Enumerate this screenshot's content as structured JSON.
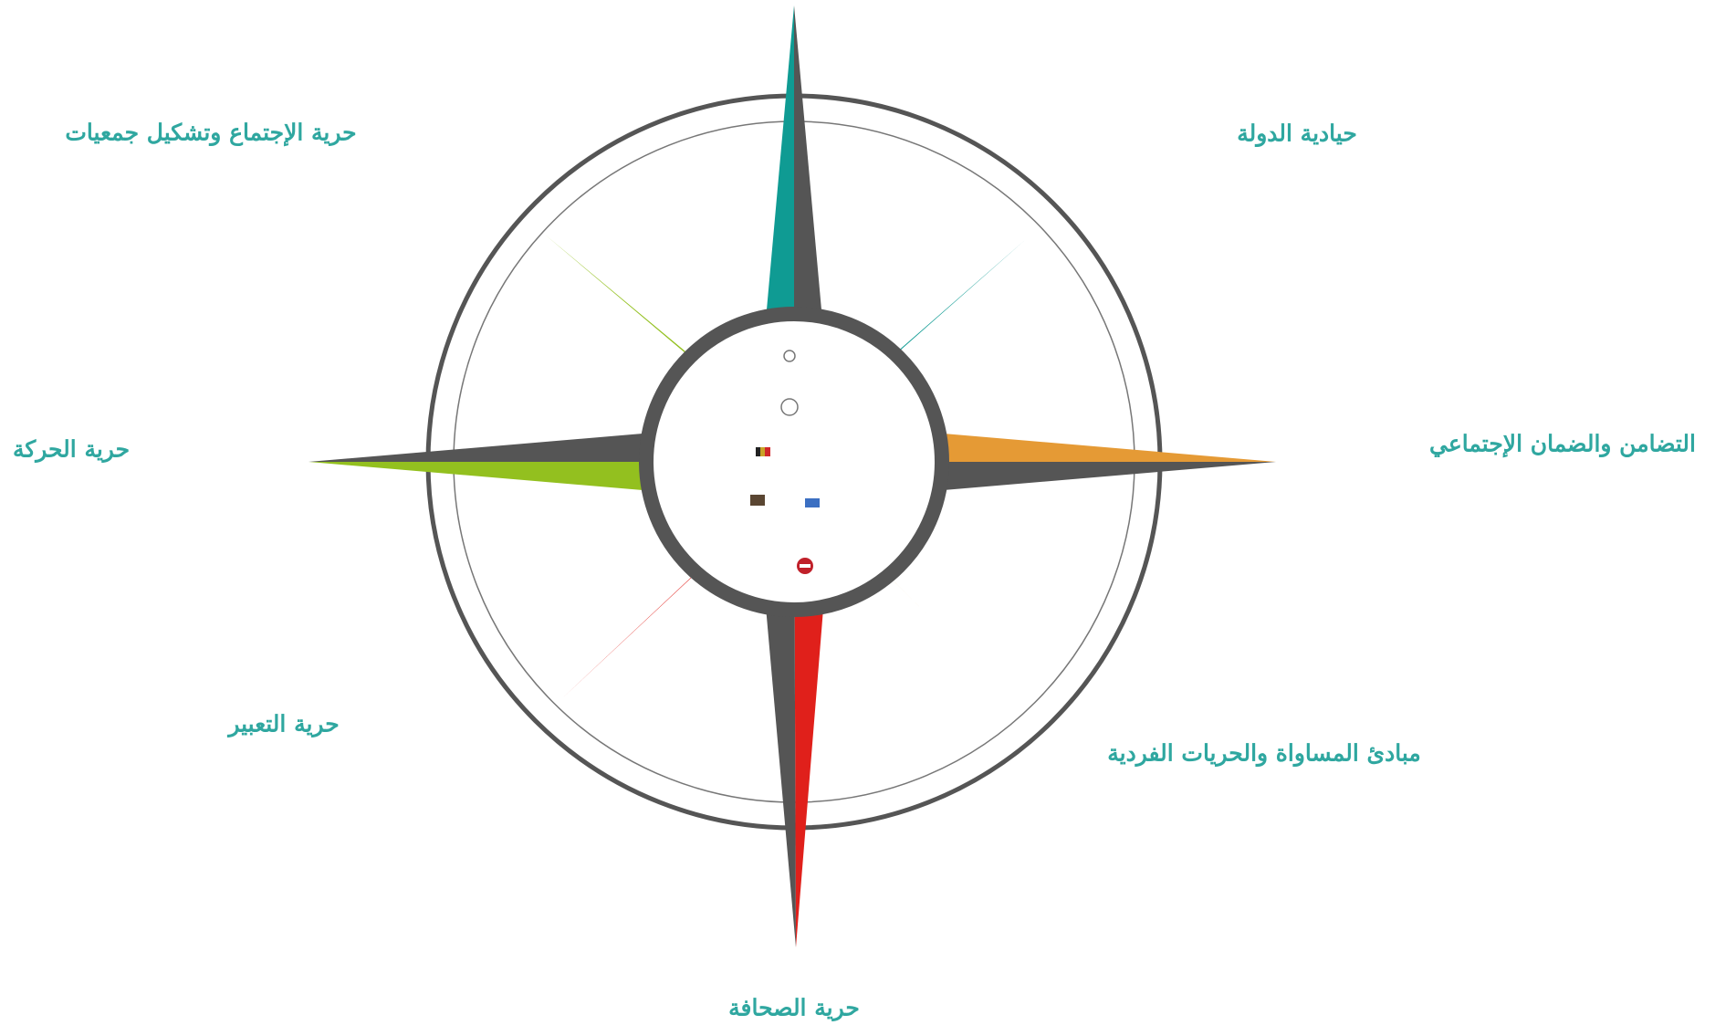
{
  "labels": {
    "north_east": "حيادية الدولة",
    "east": "التضامن والضمان الإجتماعي",
    "south_east": "مبادئ المساواة والحريات الفردية",
    "south": "حرية الصحافة",
    "south_west": "حرية التعبير",
    "west": "حرية الحركة",
    "north_west": "حرية الإجتماع وتشكيل جمعيات"
  }
}
